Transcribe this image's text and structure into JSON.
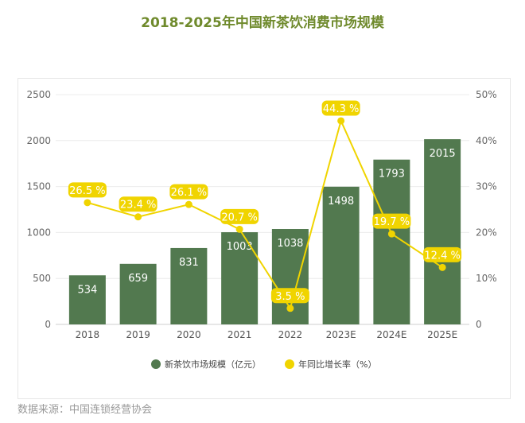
{
  "chart_data": {
    "type": "bar+line",
    "title": "2018-2025年中国新茶饮消费市场规模",
    "categories": [
      "2018",
      "2019",
      "2020",
      "2021",
      "2022",
      "2023E",
      "2024E",
      "2025E"
    ],
    "series": [
      {
        "name": "新茶饮市场规模（亿元）",
        "type": "bar",
        "axis": "left",
        "color": "#52794f",
        "values": [
          534,
          659,
          831,
          1003,
          1038,
          1498,
          1793,
          2015
        ]
      },
      {
        "name": "年同比增长率（%）",
        "type": "line",
        "axis": "right",
        "color": "#f0d400",
        "values": [
          26.5,
          23.4,
          26.1,
          20.7,
          3.5,
          44.3,
          19.7,
          12.4
        ],
        "labels": [
          "26.5 %",
          "23.4 %",
          "26.1 %",
          "20.7 %",
          "3.5 %",
          "44.3 %",
          "19.7 %",
          "12.4 %"
        ]
      }
    ],
    "y_left": {
      "range": [
        0,
        2500
      ],
      "ticks": [
        "0",
        "500",
        "1000",
        "1500",
        "2000",
        "2500"
      ]
    },
    "y_right": {
      "range": [
        0,
        50
      ],
      "ticks": [
        "0",
        "10%",
        "20%",
        "30%",
        "40%",
        "50%"
      ]
    },
    "grid": true,
    "legend": "bottom"
  },
  "source": "数据来源：中国连锁经营协会"
}
